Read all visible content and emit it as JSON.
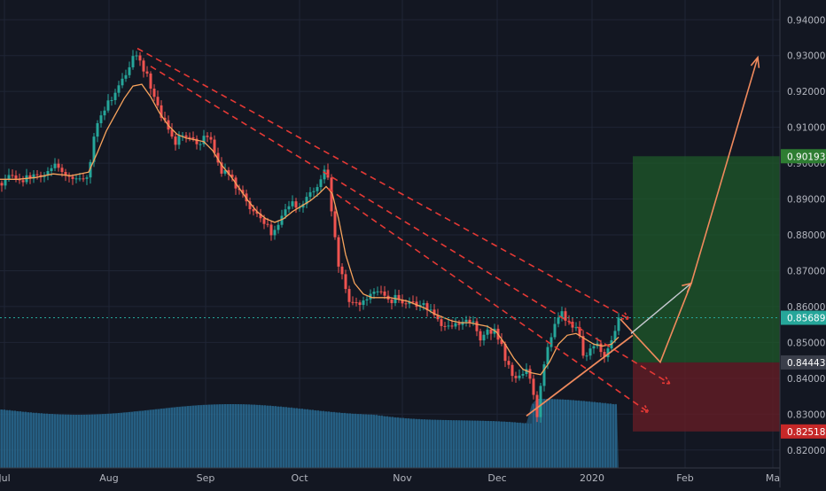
{
  "colors": {
    "background": "#131722",
    "grid": "#1f2535",
    "axis_text": "#b2b5be",
    "up": "#26a69a",
    "down": "#ef5350",
    "ma": "#f7a35c",
    "trend_red": "#e53935",
    "trend_orange": "#f08a5d",
    "target_zone": "#1f5a2a",
    "stop_zone": "#6a1d25",
    "volume": "#2a6f97",
    "last_price_tag": "#26a69a",
    "target_tag": "#2e7d32",
    "stop_tag": "#c62828"
  },
  "chart_data": {
    "type": "candlestick",
    "title": "",
    "xlabel": "",
    "ylabel": "",
    "ylim": [
      0.815,
      0.9455
    ],
    "grid": true,
    "x_axis": {
      "tick_labels": [
        "Jul",
        "Aug",
        "Sep",
        "Oct",
        "Nov",
        "Dec",
        "2020",
        "Feb",
        "Ma"
      ]
    },
    "y_axis": {
      "tick_labels": [
        "0.94000",
        "0.93000",
        "0.92000",
        "0.91000",
        "0.90000",
        "0.89000",
        "0.88000",
        "0.87000",
        "0.86000",
        "0.85000",
        "0.84000",
        "0.83000",
        "0.82000"
      ],
      "tick_values": [
        0.94,
        0.93,
        0.92,
        0.91,
        0.9,
        0.89,
        0.88,
        0.87,
        0.86,
        0.85,
        0.84,
        0.83,
        0.82
      ]
    },
    "price_path": [
      [
        0,
        0.8945
      ],
      [
        13,
        0.896
      ],
      [
        25,
        0.8945
      ],
      [
        37,
        0.897
      ],
      [
        48,
        0.8965
      ],
      [
        60,
        0.8995
      ],
      [
        72,
        0.8975
      ],
      [
        82,
        0.8965
      ],
      [
        93,
        0.8945
      ],
      [
        100,
        0.898
      ],
      [
        108,
        0.911
      ],
      [
        117,
        0.9145
      ],
      [
        126,
        0.918
      ],
      [
        135,
        0.922
      ],
      [
        144,
        0.9245
      ],
      [
        150,
        0.929
      ],
      [
        156,
        0.9305
      ],
      [
        162,
        0.9265
      ],
      [
        168,
        0.9235
      ],
      [
        174,
        0.9185
      ],
      [
        181,
        0.9125
      ],
      [
        188,
        0.9105
      ],
      [
        196,
        0.905
      ],
      [
        204,
        0.9085
      ],
      [
        212,
        0.9075
      ],
      [
        220,
        0.9055
      ],
      [
        228,
        0.9065
      ],
      [
        236,
        0.908
      ],
      [
        243,
        0.902
      ],
      [
        250,
        0.8965
      ],
      [
        258,
        0.8975
      ],
      [
        266,
        0.894
      ],
      [
        274,
        0.8915
      ],
      [
        282,
        0.8875
      ],
      [
        290,
        0.8855
      ],
      [
        298,
        0.8835
      ],
      [
        306,
        0.8805
      ],
      [
        314,
        0.8825
      ],
      [
        322,
        0.8865
      ],
      [
        330,
        0.8885
      ],
      [
        338,
        0.8875
      ],
      [
        346,
        0.8905
      ],
      [
        354,
        0.8925
      ],
      [
        362,
        0.8955
      ],
      [
        368,
        0.8995
      ],
      [
        372,
        0.8905
      ],
      [
        376,
        0.8835
      ],
      [
        380,
        0.8735
      ],
      [
        386,
        0.8695
      ],
      [
        392,
        0.8625
      ],
      [
        398,
        0.8605
      ],
      [
        406,
        0.8615
      ],
      [
        414,
        0.8625
      ],
      [
        422,
        0.8645
      ],
      [
        430,
        0.8635
      ],
      [
        438,
        0.8615
      ],
      [
        446,
        0.8625
      ],
      [
        454,
        0.8605
      ],
      [
        462,
        0.8615
      ],
      [
        470,
        0.8595
      ],
      [
        478,
        0.8615
      ],
      [
        486,
        0.8585
      ],
      [
        494,
        0.8555
      ],
      [
        502,
        0.8545
      ],
      [
        510,
        0.8535
      ],
      [
        518,
        0.8555
      ],
      [
        526,
        0.8565
      ],
      [
        534,
        0.8555
      ],
      [
        542,
        0.8515
      ],
      [
        550,
        0.8535
      ],
      [
        558,
        0.8535
      ],
      [
        566,
        0.8485
      ],
      [
        572,
        0.8445
      ],
      [
        578,
        0.8415
      ],
      [
        584,
        0.8395
      ],
      [
        590,
        0.8405
      ],
      [
        596,
        0.8425
      ],
      [
        602,
        0.8355
      ],
      [
        606,
        0.8295
      ],
      [
        610,
        0.8385
      ],
      [
        616,
        0.8475
      ],
      [
        622,
        0.8515
      ],
      [
        628,
        0.8555
      ],
      [
        634,
        0.8585
      ],
      [
        640,
        0.8555
      ],
      [
        646,
        0.8545
      ],
      [
        652,
        0.8535
      ],
      [
        658,
        0.8455
      ],
      [
        664,
        0.8475
      ],
      [
        670,
        0.8495
      ],
      [
        676,
        0.8485
      ],
      [
        682,
        0.8465
      ],
      [
        688,
        0.8495
      ],
      [
        694,
        0.8525
      ],
      [
        698,
        0.8569
      ]
    ],
    "moving_average": {
      "points": [
        [
          0,
          0.8955
        ],
        [
          20,
          0.8955
        ],
        [
          40,
          0.896
        ],
        [
          60,
          0.897
        ],
        [
          80,
          0.8965
        ],
        [
          100,
          0.8975
        ],
        [
          110,
          0.903
        ],
        [
          120,
          0.909
        ],
        [
          130,
          0.9135
        ],
        [
          140,
          0.918
        ],
        [
          150,
          0.9215
        ],
        [
          160,
          0.922
        ],
        [
          170,
          0.9185
        ],
        [
          180,
          0.914
        ],
        [
          190,
          0.9105
        ],
        [
          200,
          0.908
        ],
        [
          210,
          0.907
        ],
        [
          220,
          0.9065
        ],
        [
          230,
          0.906
        ],
        [
          240,
          0.9035
        ],
        [
          250,
          0.8995
        ],
        [
          260,
          0.8965
        ],
        [
          270,
          0.893
        ],
        [
          280,
          0.8895
        ],
        [
          290,
          0.8865
        ],
        [
          300,
          0.8845
        ],
        [
          310,
          0.8835
        ],
        [
          320,
          0.8845
        ],
        [
          330,
          0.8865
        ],
        [
          340,
          0.888
        ],
        [
          350,
          0.8895
        ],
        [
          360,
          0.8915
        ],
        [
          368,
          0.8935
        ],
        [
          375,
          0.8915
        ],
        [
          382,
          0.8845
        ],
        [
          390,
          0.8745
        ],
        [
          400,
          0.8665
        ],
        [
          410,
          0.8635
        ],
        [
          420,
          0.8625
        ],
        [
          430,
          0.8625
        ],
        [
          440,
          0.8625
        ],
        [
          450,
          0.862
        ],
        [
          460,
          0.8615
        ],
        [
          470,
          0.8605
        ],
        [
          480,
          0.8595
        ],
        [
          490,
          0.858
        ],
        [
          500,
          0.857
        ],
        [
          510,
          0.856
        ],
        [
          520,
          0.8555
        ],
        [
          530,
          0.8555
        ],
        [
          540,
          0.855
        ],
        [
          550,
          0.8545
        ],
        [
          560,
          0.853
        ],
        [
          570,
          0.8495
        ],
        [
          580,
          0.8455
        ],
        [
          590,
          0.8425
        ],
        [
          600,
          0.8415
        ],
        [
          610,
          0.841
        ],
        [
          620,
          0.8445
        ],
        [
          630,
          0.8495
        ],
        [
          640,
          0.852
        ],
        [
          650,
          0.8525
        ],
        [
          660,
          0.851
        ],
        [
          670,
          0.8495
        ],
        [
          680,
          0.849
        ],
        [
          690,
          0.8495
        ],
        [
          698,
          0.8515
        ]
      ]
    },
    "price_tags": [
      {
        "label": "0.90193",
        "value": 0.90193,
        "kind": "target"
      },
      {
        "label": "0.85689",
        "value": 0.85689,
        "kind": "last"
      },
      {
        "label": "0.84443",
        "value": 0.84443,
        "kind": "entry"
      },
      {
        "label": "0.82518",
        "value": 0.82518,
        "kind": "stop"
      }
    ],
    "annotations": {
      "downtrend_lines": [
        {
          "from": [
            155,
            0.932
          ],
          "to": [
            710,
            0.8565
          ]
        },
        {
          "from": [
            170,
            0.927
          ],
          "to": [
            756,
            0.8385
          ]
        },
        {
          "from": [
            370,
            0.893
          ],
          "to": [
            732,
            0.8305
          ]
        }
      ],
      "uptrend_line": {
        "from": [
          594,
          0.8295
        ],
        "to": [
          714,
          0.852
        ]
      },
      "projection_path": [
        [
          700,
          0.8565
        ],
        [
          745,
          0.8445
        ],
        [
          780,
          0.8665
        ],
        [
          855,
          0.9295
        ]
      ],
      "alt_projection": [
        [
          712,
          0.8525
        ],
        [
          780,
          0.8665
        ]
      ],
      "target_zone": {
        "x_from": 714,
        "x_to": 880,
        "top": 0.90193,
        "bottom": 0.84443
      },
      "stop_zone": {
        "x_from": 714,
        "x_to": 880,
        "top": 0.84443,
        "bottom": 0.82518
      }
    }
  }
}
